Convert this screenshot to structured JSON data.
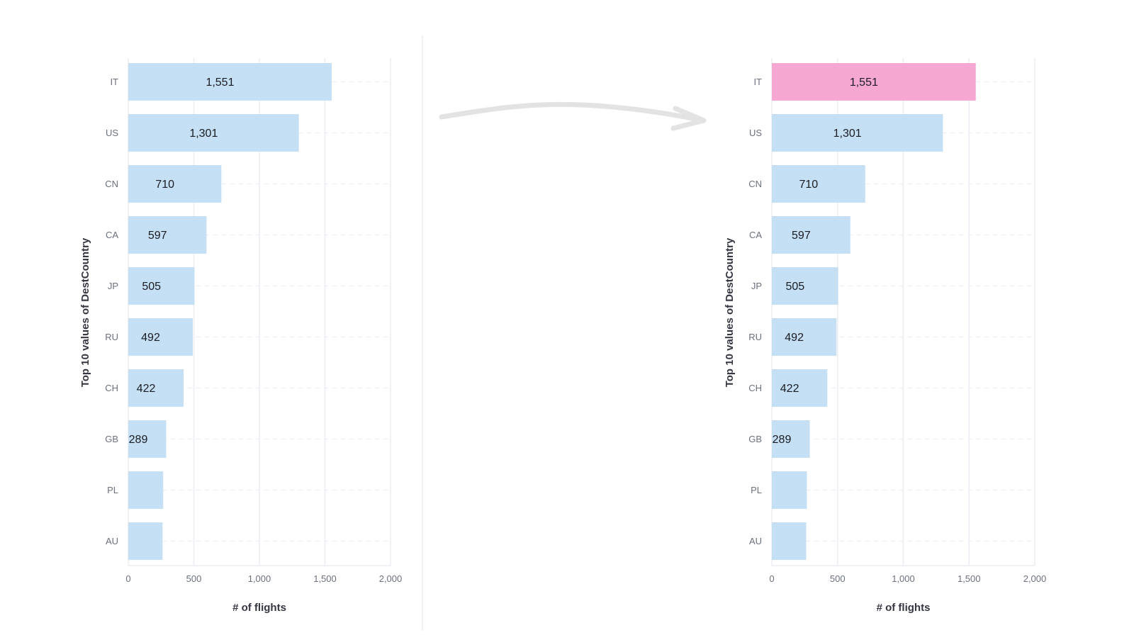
{
  "chart_data": [
    {
      "type": "bar",
      "orientation": "horizontal",
      "categories": [
        "IT",
        "US",
        "CN",
        "CA",
        "JP",
        "RU",
        "CH",
        "GB",
        "PL",
        "AU"
      ],
      "values": [
        1551,
        1301,
        710,
        597,
        505,
        492,
        422,
        289,
        266,
        261
      ],
      "value_labels": [
        "1,551",
        "1,301",
        "710",
        "597",
        "505",
        "492",
        "422",
        "289",
        "",
        ""
      ],
      "xlabel": "# of flights",
      "ylabel": "Top 10 values of DestCountry",
      "xlim": [
        0,
        2000
      ],
      "xticks": [
        "0",
        "500",
        "1,000",
        "1,500",
        "2,000"
      ],
      "xtick_values": [
        0,
        500,
        1000,
        1500,
        2000
      ],
      "grid": true,
      "bar_color": "#c5dff5",
      "highlight_color": null,
      "highlight_index": null
    },
    {
      "type": "bar",
      "orientation": "horizontal",
      "categories": [
        "IT",
        "US",
        "CN",
        "CA",
        "JP",
        "RU",
        "CH",
        "GB",
        "PL",
        "AU"
      ],
      "values": [
        1551,
        1301,
        710,
        597,
        505,
        492,
        422,
        289,
        266,
        261
      ],
      "value_labels": [
        "1,551",
        "1,301",
        "710",
        "597",
        "505",
        "492",
        "422",
        "289",
        "",
        ""
      ],
      "xlabel": "# of flights",
      "ylabel": "Top 10 values of DestCountry",
      "xlim": [
        0,
        2000
      ],
      "xticks": [
        "0",
        "500",
        "1,000",
        "1,500",
        "2,000"
      ],
      "xtick_values": [
        0,
        500,
        1000,
        1500,
        2000
      ],
      "grid": true,
      "bar_color": "#c5dff5",
      "highlight_color": "#f6a8d2",
      "highlight_index": 0
    }
  ],
  "colors": {
    "grid": "#eceef4",
    "tick_text": "#6a717d",
    "title_text": "#343741",
    "value_text": "#1a1c21",
    "arrow": "#e3e3e3",
    "divider": "#f1f2f5"
  }
}
